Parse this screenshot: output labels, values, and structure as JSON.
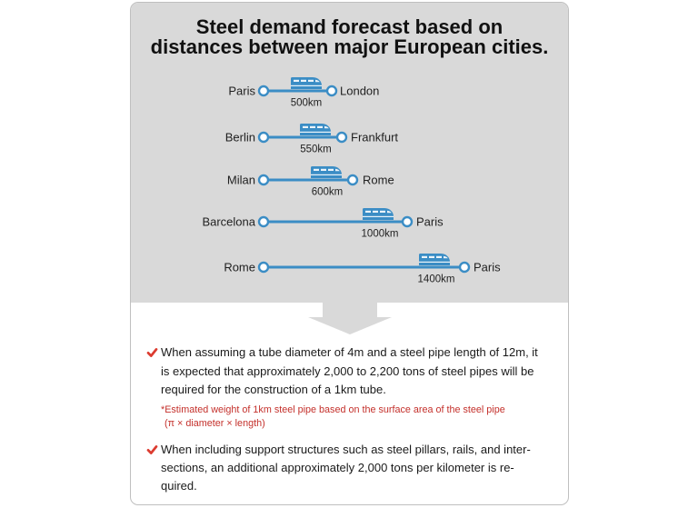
{
  "title": {
    "line1": "Steel demand forecast based on",
    "line2": "distances between major European cities."
  },
  "routes": [
    {
      "from": "Paris",
      "to": "London",
      "distance": "500km"
    },
    {
      "from": "Berlin",
      "to": "Frankfurt",
      "distance": "550km"
    },
    {
      "from": "Milan",
      "to": "Rome",
      "distance": "600km"
    },
    {
      "from": "Barcelona",
      "to": "Paris",
      "distance": "1000km"
    },
    {
      "from": "Rome",
      "to": "Paris",
      "distance": "1400km"
    }
  ],
  "bullets": [
    {
      "lines": [
        "When assuming a tube diameter of 4m and a steel pipe length of 12m, it",
        "is expected that approximately 2,000 to 2,200 tons of steel pipes will be",
        "required for the construction of a 1km tube."
      ]
    },
    {
      "lines": [
        "When including support structures such as steel pillars, rails, and inter-",
        "sections, an additional approximately 2,000 tons per kilometer is re-",
        "quired."
      ]
    }
  ],
  "note": {
    "lines": [
      "*Estimated weight of 1km steel pipe based on the surface area of the steel pipe",
      "(π × diameter × length)"
    ]
  },
  "icons": {
    "route_vehicle": "train-icon",
    "route_endpoint": "route-node-icon",
    "bullet_marker": "check-icon",
    "section_transition": "down-arrow-icon"
  },
  "colors": {
    "route_blue": "#3b8dc5",
    "check_red": "#dc3b2f",
    "note_red": "#c4302b",
    "panel_gray": "#d9d9d9"
  }
}
